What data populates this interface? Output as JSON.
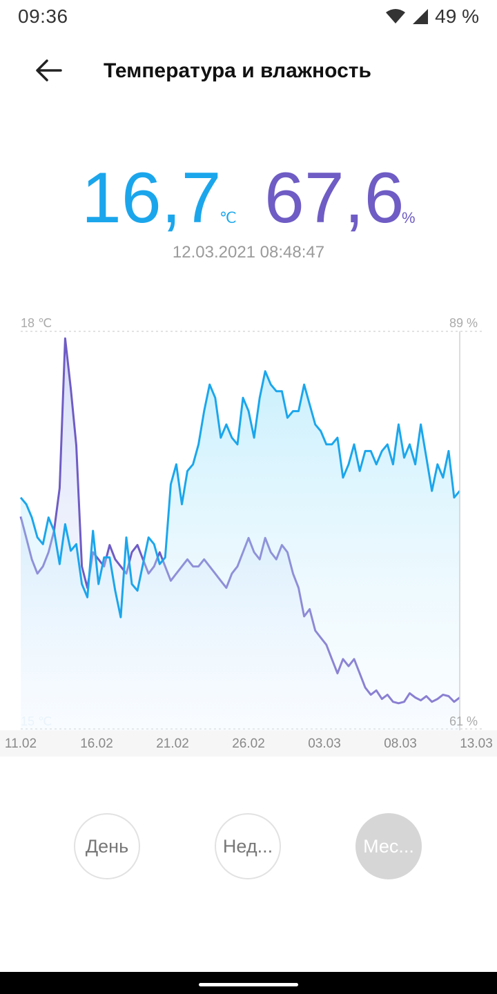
{
  "status_bar": {
    "time": "09:36",
    "battery": "49 %",
    "wifi_icon": "wifi-icon",
    "signal_icon": "signal-icon"
  },
  "header": {
    "title": "Температура и влажность",
    "back_icon": "arrow-left-icon"
  },
  "current": {
    "temperature": "16,7",
    "temperature_unit": "℃",
    "humidity": "67,6",
    "humidity_unit": "%",
    "timestamp": "12.03.2021 08:48:47"
  },
  "colors": {
    "temperature": "#1ba6ec",
    "humidity": "#6f5cc4",
    "active_period_bg": "#d6d6d6"
  },
  "chart_data": {
    "type": "line",
    "y_left_top_label": "18 ℃",
    "y_right_top_label": "89 %",
    "y_left_bottom_label": "15 ℃",
    "y_right_bottom_label": "61 %",
    "ylim_temperature": [
      15,
      18
    ],
    "ylim_humidity": [
      61,
      89
    ],
    "x_labels": [
      "11.02",
      "16.02",
      "21.02",
      "26.02",
      "03.03",
      "08.03",
      "13.03"
    ],
    "series": [
      {
        "key": "temperature",
        "color": "#1ba6ec",
        "unit": "℃",
        "values": [
          16.75,
          16.7,
          16.6,
          16.45,
          16.4,
          16.6,
          16.5,
          16.25,
          16.55,
          16.35,
          16.4,
          16.1,
          16.0,
          16.5,
          16.1,
          16.3,
          16.3,
          16.05,
          15.85,
          16.45,
          16.1,
          16.05,
          16.25,
          16.45,
          16.4,
          16.25,
          16.3,
          16.85,
          17.0,
          16.7,
          16.95,
          17.0,
          17.15,
          17.4,
          17.6,
          17.5,
          17.2,
          17.3,
          17.2,
          17.15,
          17.5,
          17.4,
          17.2,
          17.5,
          17.7,
          17.6,
          17.55,
          17.55,
          17.35,
          17.4,
          17.4,
          17.6,
          17.45,
          17.3,
          17.25,
          17.15,
          17.15,
          17.2,
          16.9,
          17.0,
          17.15,
          16.95,
          17.1,
          17.1,
          17.0,
          17.1,
          17.15,
          17.0,
          17.3,
          17.05,
          17.15,
          17.0,
          17.3,
          17.05,
          16.8,
          17.0,
          16.9,
          17.1,
          16.75,
          16.8
        ]
      },
      {
        "key": "humidity",
        "color": "#6f5cc4",
        "unit": "%",
        "values": [
          76.0,
          74.5,
          73.0,
          72.0,
          72.5,
          73.5,
          75.0,
          78.0,
          88.5,
          85.0,
          81.0,
          72.5,
          71.0,
          73.5,
          73.0,
          72.5,
          74.0,
          73.0,
          72.5,
          72.0,
          73.5,
          74.0,
          73.0,
          72.0,
          72.5,
          73.5,
          72.5,
          71.5,
          72.0,
          72.5,
          73.0,
          72.5,
          72.5,
          73.0,
          72.5,
          72.0,
          71.5,
          71.0,
          72.0,
          72.5,
          73.5,
          74.5,
          73.5,
          73.0,
          74.5,
          73.5,
          73.0,
          74.0,
          73.5,
          72.0,
          71.0,
          69.0,
          69.5,
          68.0,
          67.5,
          67.0,
          66.0,
          65.0,
          66.0,
          65.5,
          66.0,
          65.0,
          64.0,
          63.5,
          63.8,
          63.2,
          63.5,
          63.0,
          62.9,
          63.0,
          63.6,
          63.3,
          63.1,
          63.4,
          63.0,
          63.2,
          63.5,
          63.4,
          63.0,
          63.3
        ]
      }
    ]
  },
  "periods": [
    {
      "label": "День",
      "active": false
    },
    {
      "label": "Нед...",
      "active": false
    },
    {
      "label": "Мес...",
      "active": true
    }
  ]
}
